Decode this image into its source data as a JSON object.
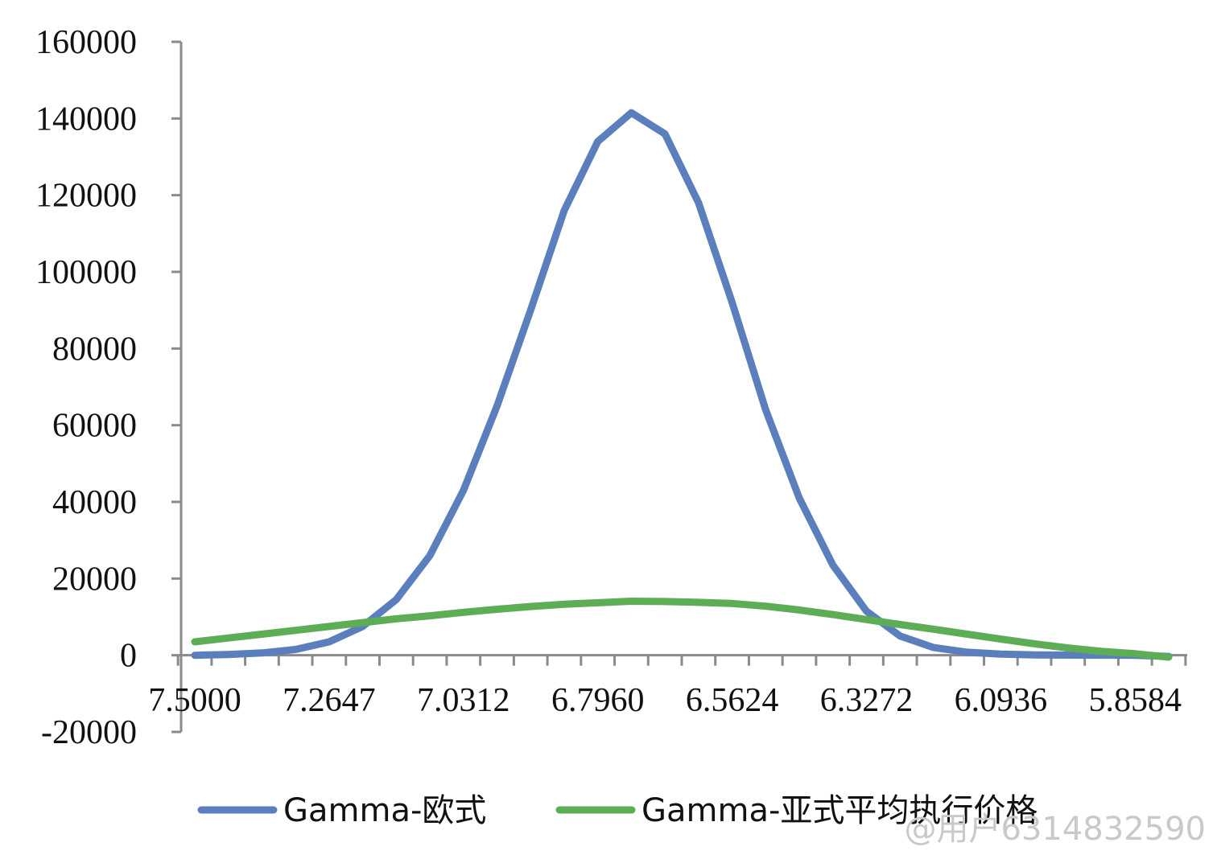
{
  "chart_data": {
    "type": "line",
    "x_tick_labels": [
      "7.5000",
      "7.2647",
      "7.0312",
      "6.7960",
      "6.5624",
      "6.3272",
      "6.0936",
      "5.8584"
    ],
    "ylim": [
      -20000,
      160000
    ],
    "y_ticks": [
      -20000,
      0,
      20000,
      40000,
      60000,
      80000,
      100000,
      120000,
      140000,
      160000
    ],
    "grid": false,
    "legend_position": "bottom",
    "series": [
      {
        "name": "Gamma-欧式",
        "color": "#5b7fbd",
        "values": [
          0,
          200,
          600,
          1500,
          3500,
          7500,
          14500,
          26000,
          43000,
          65000,
          90000,
          116000,
          134000,
          141500,
          136000,
          118000,
          92000,
          64000,
          41000,
          23500,
          11500,
          5000,
          2000,
          800,
          300,
          100,
          30,
          10,
          0,
          -300
        ]
      },
      {
        "name": "Gamma-亚式平均执行价格",
        "color": "#5cad55",
        "values": [
          3500,
          4500,
          5500,
          6500,
          7500,
          8500,
          9500,
          10300,
          11200,
          12000,
          12700,
          13300,
          13700,
          14100,
          14000,
          13800,
          13500,
          12800,
          11800,
          10600,
          9300,
          8000,
          6800,
          5500,
          4200,
          3000,
          1900,
          1000,
          400,
          -500
        ]
      }
    ]
  },
  "watermark": "@用户6314832590"
}
